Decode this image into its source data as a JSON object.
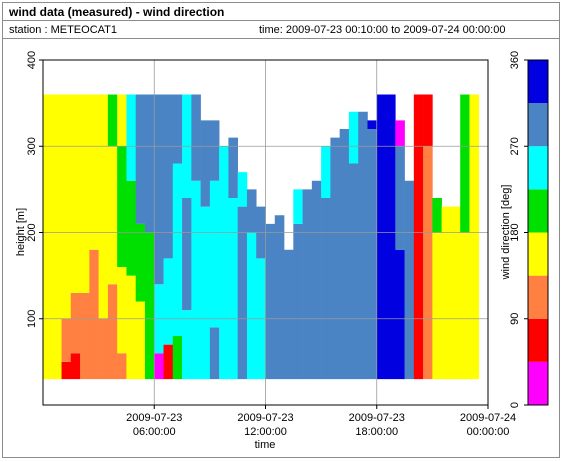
{
  "header": {
    "title": "wind data (measured) - wind direction",
    "station": "station : METEOCAT1",
    "timerange": "time: 2009-07-23 00:10:00 to 2009-07-24 00:00:00"
  },
  "chart_data": {
    "type": "heatmap",
    "title": "wind data (measured) - wind direction",
    "xlabel": "time",
    "ylabel": "height [m]",
    "colorbar_label": "wind direction [deg]",
    "xlim": [
      0,
      24
    ],
    "ylim": [
      0,
      400
    ],
    "x_ticks": [
      {
        "value": 6,
        "line1": "2009-07-23",
        "line2": "06:00:00"
      },
      {
        "value": 12,
        "line1": "2009-07-23",
        "line2": "12:00:00"
      },
      {
        "value": 18,
        "line1": "2009-07-23",
        "line2": "18:00:00"
      },
      {
        "value": 24,
        "line1": "2009-07-24",
        "line2": "00:00:00"
      }
    ],
    "y_ticks": [
      100,
      200,
      300,
      400
    ],
    "colorbar": {
      "range": [
        0,
        360
      ],
      "ticks": [
        0,
        90,
        180,
        270,
        360
      ],
      "bands": [
        {
          "from": 0,
          "to": 45,
          "color": "#ff00ff"
        },
        {
          "from": 45,
          "to": 90,
          "color": "#ff0000"
        },
        {
          "from": 90,
          "to": 135,
          "color": "#ff8040"
        },
        {
          "from": 135,
          "to": 180,
          "color": "#ffff00"
        },
        {
          "from": 180,
          "to": 225,
          "color": "#00e000"
        },
        {
          "from": 225,
          "to": 270,
          "color": "#00ffff"
        },
        {
          "from": 270,
          "to": 315,
          "color": "#4a84c4"
        },
        {
          "from": 315,
          "to": 360,
          "color": "#0000e0"
        }
      ]
    },
    "measured_height_range": [
      30,
      360
    ],
    "grid": true,
    "columns": [
      {
        "t": 0.0,
        "ranges": [
          [
            30,
            360,
            157
          ]
        ]
      },
      {
        "t": 0.5,
        "ranges": [
          [
            30,
            360,
            157
          ]
        ]
      },
      {
        "t": 1.0,
        "ranges": [
          [
            30,
            50,
            67
          ],
          [
            50,
            100,
            112
          ],
          [
            100,
            360,
            157
          ]
        ]
      },
      {
        "t": 1.5,
        "ranges": [
          [
            30,
            60,
            67
          ],
          [
            60,
            130,
            112
          ],
          [
            130,
            360,
            157
          ]
        ]
      },
      {
        "t": 2.0,
        "ranges": [
          [
            30,
            130,
            112
          ],
          [
            130,
            360,
            157
          ]
        ]
      },
      {
        "t": 2.5,
        "ranges": [
          [
            30,
            180,
            112
          ],
          [
            180,
            360,
            157
          ]
        ]
      },
      {
        "t": 3.0,
        "ranges": [
          [
            30,
            100,
            112
          ],
          [
            100,
            360,
            157
          ]
        ]
      },
      {
        "t": 3.5,
        "ranges": [
          [
            30,
            140,
            112
          ],
          [
            140,
            300,
            157
          ],
          [
            300,
            360,
            202
          ]
        ]
      },
      {
        "t": 4.0,
        "ranges": [
          [
            30,
            60,
            112
          ],
          [
            60,
            160,
            157
          ],
          [
            160,
            300,
            202
          ],
          [
            300,
            360,
            157
          ]
        ]
      },
      {
        "t": 4.5,
        "ranges": [
          [
            30,
            150,
            157
          ],
          [
            150,
            260,
            202
          ],
          [
            260,
            360,
            247
          ]
        ]
      },
      {
        "t": 5.0,
        "ranges": [
          [
            30,
            120,
            157
          ],
          [
            120,
            210,
            202
          ],
          [
            210,
            360,
            292
          ]
        ]
      },
      {
        "t": 5.5,
        "ranges": [
          [
            30,
            200,
            202
          ],
          [
            200,
            360,
            292
          ]
        ]
      },
      {
        "t": 6.0,
        "ranges": [
          [
            30,
            60,
            22
          ],
          [
            60,
            140,
            247
          ],
          [
            140,
            360,
            292
          ]
        ]
      },
      {
        "t": 6.5,
        "ranges": [
          [
            30,
            70,
            67
          ],
          [
            70,
            170,
            247
          ],
          [
            170,
            360,
            292
          ]
        ]
      },
      {
        "t": 7.0,
        "ranges": [
          [
            30,
            80,
            202
          ],
          [
            80,
            280,
            247
          ],
          [
            280,
            360,
            292
          ]
        ]
      },
      {
        "t": 7.5,
        "ranges": [
          [
            30,
            110,
            247
          ],
          [
            110,
            240,
            292
          ],
          [
            240,
            360,
            247
          ]
        ]
      },
      {
        "t": 8.0,
        "ranges": [
          [
            30,
            260,
            247
          ],
          [
            260,
            360,
            292
          ]
        ]
      },
      {
        "t": 8.5,
        "ranges": [
          [
            30,
            230,
            247
          ],
          [
            230,
            330,
            292
          ]
        ]
      },
      {
        "t": 9.0,
        "ranges": [
          [
            30,
            90,
            292
          ],
          [
            90,
            260,
            247
          ],
          [
            260,
            330,
            292
          ]
        ]
      },
      {
        "t": 9.5,
        "ranges": [
          [
            30,
            300,
            247
          ]
        ]
      },
      {
        "t": 10.0,
        "ranges": [
          [
            30,
            240,
            247
          ],
          [
            240,
            310,
            292
          ]
        ]
      },
      {
        "t": 10.5,
        "ranges": [
          [
            30,
            230,
            292
          ],
          [
            230,
            270,
            247
          ]
        ]
      },
      {
        "t": 11.0,
        "ranges": [
          [
            30,
            200,
            247
          ],
          [
            200,
            250,
            292
          ]
        ]
      },
      {
        "t": 11.5,
        "ranges": [
          [
            30,
            170,
            247
          ],
          [
            170,
            230,
            292
          ]
        ]
      },
      {
        "t": 12.0,
        "ranges": [
          [
            30,
            210,
            292
          ]
        ]
      },
      {
        "t": 12.5,
        "ranges": [
          [
            30,
            220,
            292
          ]
        ]
      },
      {
        "t": 13.0,
        "ranges": [
          [
            30,
            180,
            292
          ]
        ]
      },
      {
        "t": 13.5,
        "ranges": [
          [
            30,
            210,
            292
          ],
          [
            210,
            250,
            247
          ]
        ]
      },
      {
        "t": 14.0,
        "ranges": [
          [
            30,
            250,
            292
          ]
        ]
      },
      {
        "t": 14.5,
        "ranges": [
          [
            30,
            260,
            292
          ]
        ]
      },
      {
        "t": 15.0,
        "ranges": [
          [
            30,
            240,
            292
          ],
          [
            240,
            300,
            247
          ]
        ]
      },
      {
        "t": 15.5,
        "ranges": [
          [
            30,
            310,
            292
          ]
        ]
      },
      {
        "t": 16.0,
        "ranges": [
          [
            30,
            320,
            292
          ]
        ]
      },
      {
        "t": 16.5,
        "ranges": [
          [
            30,
            280,
            292
          ],
          [
            280,
            340,
            247
          ]
        ]
      },
      {
        "t": 17.0,
        "ranges": [
          [
            30,
            340,
            292
          ]
        ]
      },
      {
        "t": 17.5,
        "ranges": [
          [
            30,
            320,
            292
          ],
          [
            320,
            330,
            337
          ]
        ]
      },
      {
        "t": 18.0,
        "ranges": [
          [
            30,
            360,
            337
          ]
        ]
      },
      {
        "t": 18.5,
        "ranges": [
          [
            30,
            360,
            337
          ]
        ]
      },
      {
        "t": 19.0,
        "ranges": [
          [
            30,
            180,
            337
          ],
          [
            180,
            300,
            292
          ],
          [
            300,
            330,
            22
          ]
        ]
      },
      {
        "t": 19.5,
        "ranges": [
          [
            30,
            260,
            292
          ]
        ]
      },
      {
        "t": 20.0,
        "ranges": [
          [
            30,
            360,
            67
          ]
        ]
      },
      {
        "t": 20.5,
        "ranges": [
          [
            30,
            300,
            112
          ],
          [
            300,
            360,
            67
          ]
        ]
      },
      {
        "t": 21.0,
        "ranges": [
          [
            30,
            200,
            157
          ],
          [
            200,
            240,
            202
          ]
        ]
      },
      {
        "t": 21.5,
        "ranges": [
          [
            30,
            230,
            157
          ]
        ]
      },
      {
        "t": 22.0,
        "ranges": [
          [
            30,
            230,
            157
          ]
        ]
      },
      {
        "t": 22.5,
        "ranges": [
          [
            30,
            200,
            157
          ],
          [
            200,
            360,
            202
          ]
        ]
      },
      {
        "t": 23.0,
        "ranges": [
          [
            30,
            360,
            157
          ]
        ]
      }
    ]
  }
}
